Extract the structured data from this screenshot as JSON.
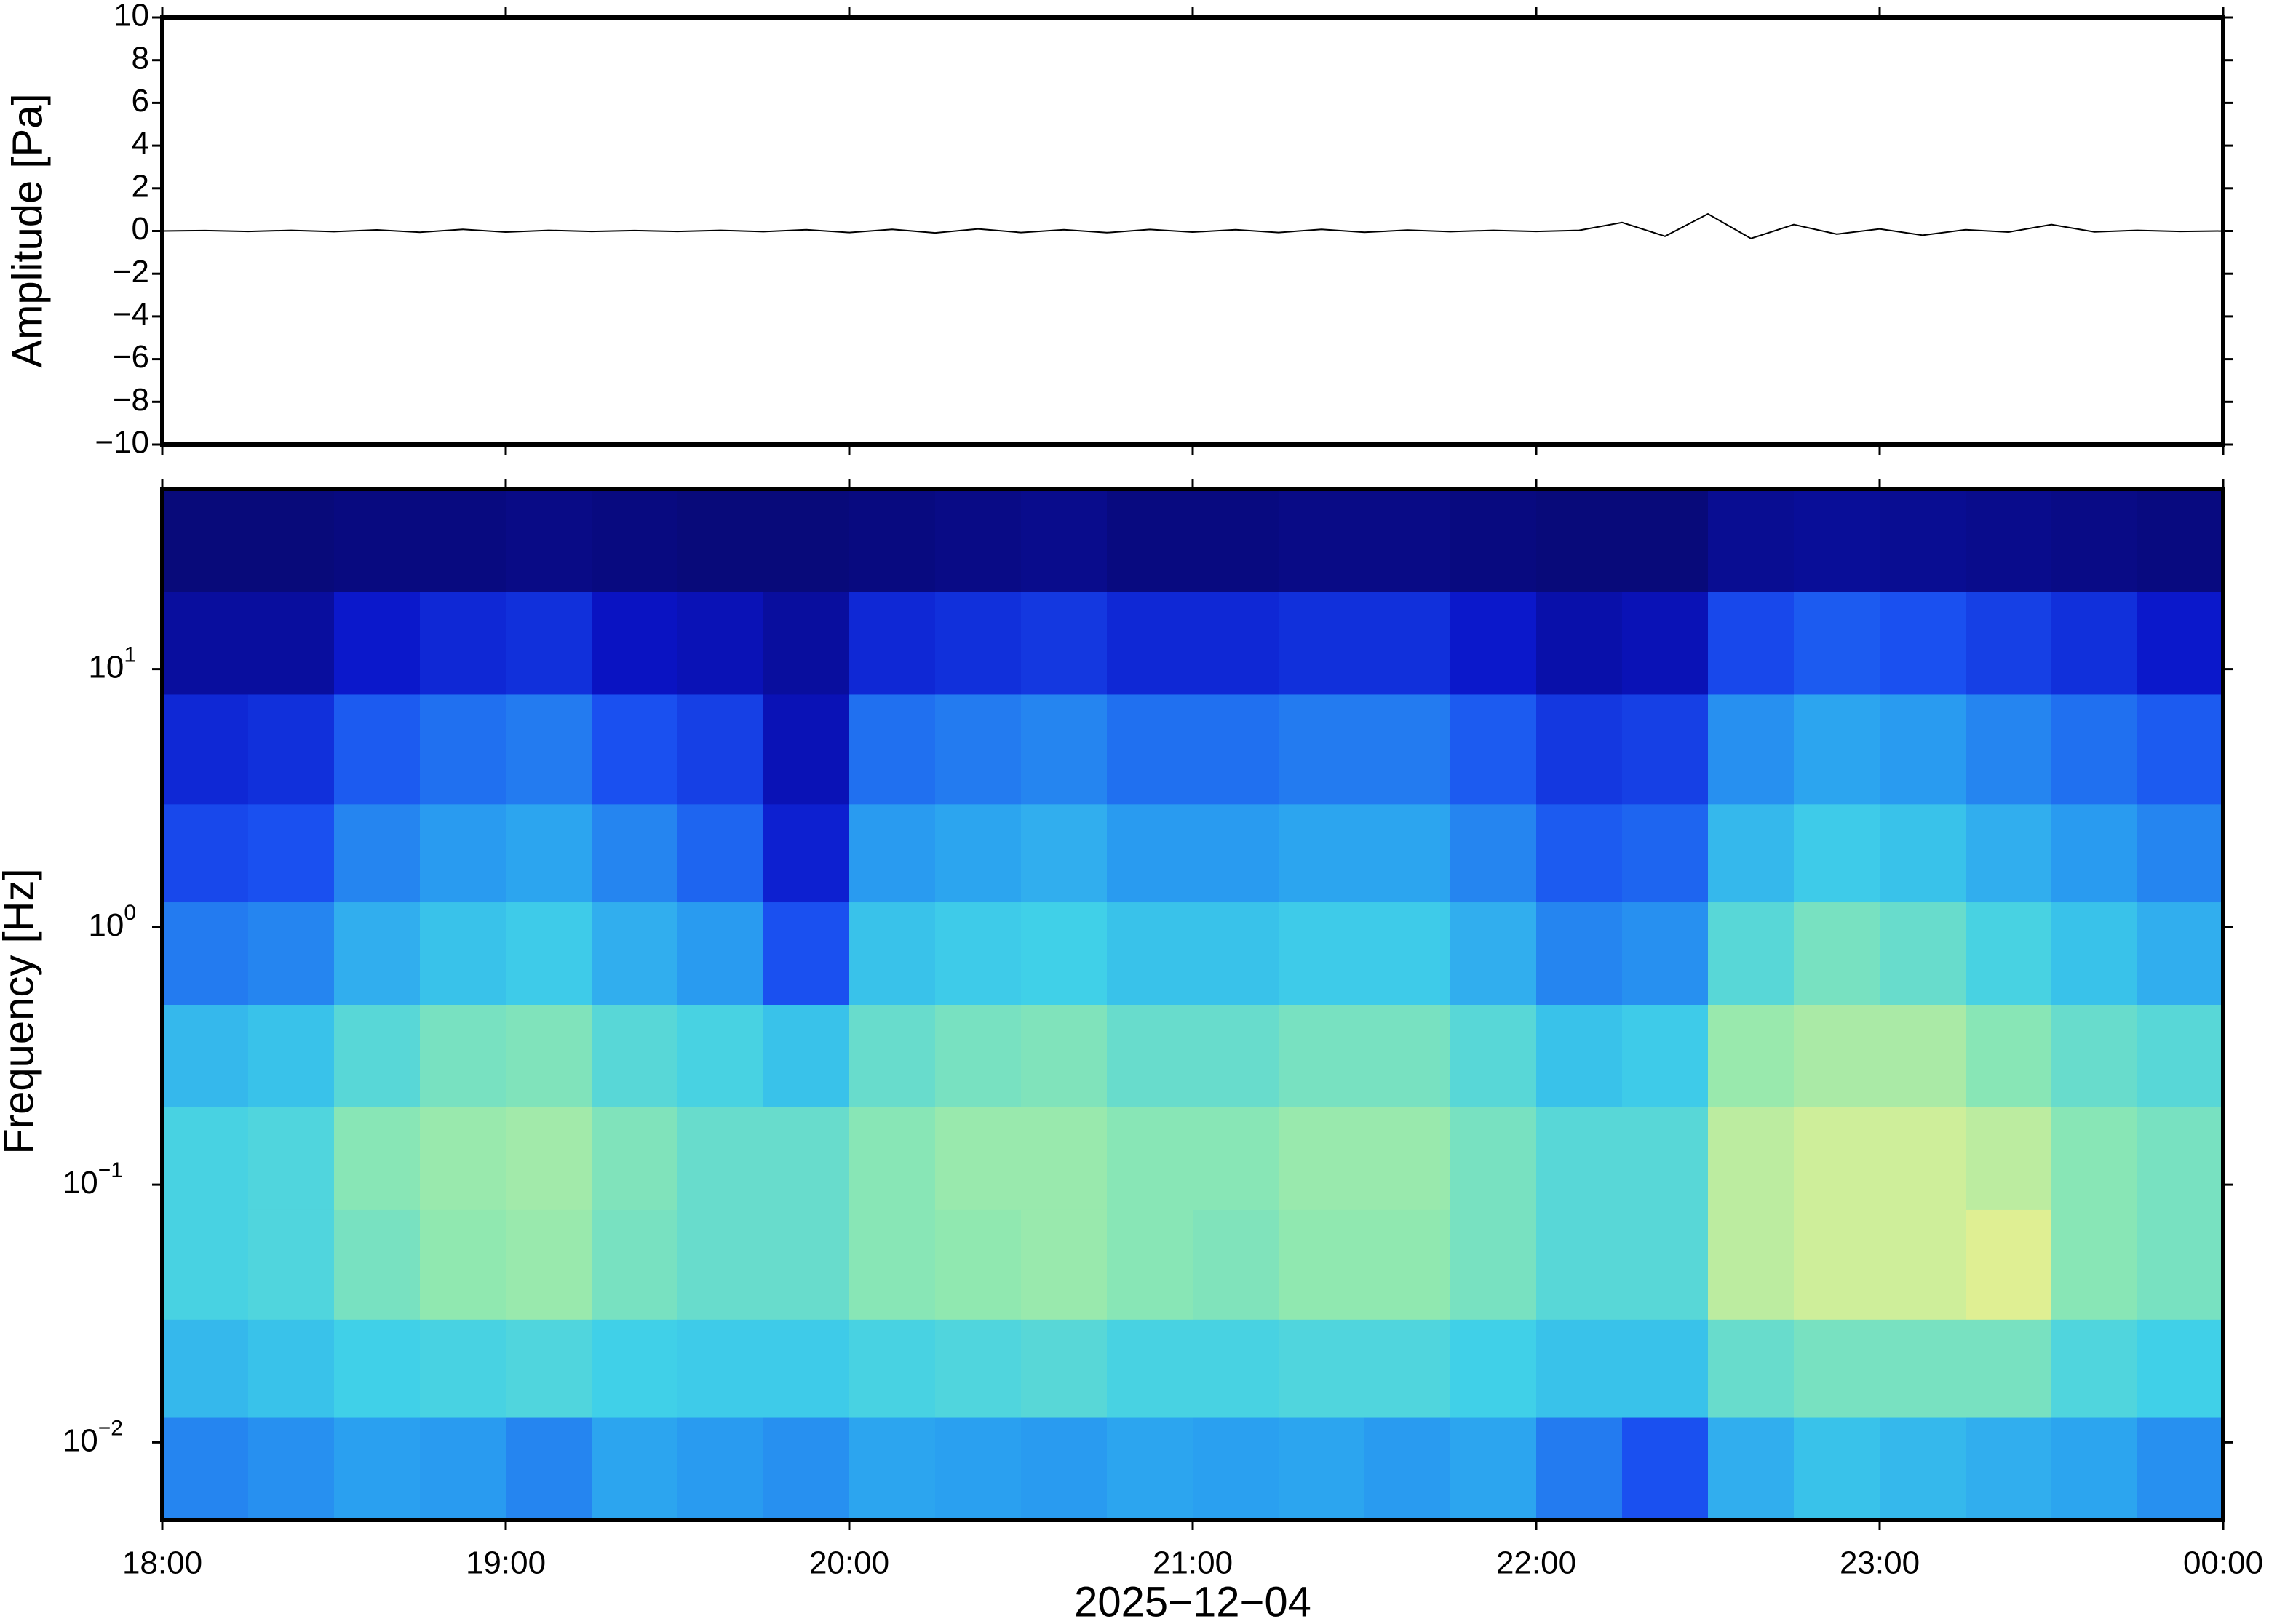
{
  "chart_data": [
    {
      "type": "line",
      "ylabel": "Amplitude [Pa]",
      "color": "#000000",
      "xlim": [
        18,
        24
      ],
      "ylim": [
        -10,
        10
      ],
      "yticks": [
        {
          "value": -10,
          "label": "−10"
        },
        {
          "value": -8,
          "label": "−8"
        },
        {
          "value": -6,
          "label": "−6"
        },
        {
          "value": -4,
          "label": "−4"
        },
        {
          "value": -2,
          "label": "−2"
        },
        0,
        2,
        4,
        6,
        8,
        10
      ],
      "x": [
        18,
        18.125,
        18.25,
        18.375,
        18.5,
        18.625,
        18.75,
        18.875,
        19,
        19.125,
        19.25,
        19.375,
        19.5,
        19.625,
        19.75,
        19.875,
        20,
        20.125,
        20.25,
        20.375,
        20.5,
        20.625,
        20.75,
        20.875,
        21,
        21.125,
        21.25,
        21.375,
        21.5,
        21.625,
        21.75,
        21.875,
        22,
        22.125,
        22.25,
        22.375,
        22.5,
        22.625,
        22.75,
        22.875,
        23,
        23.125,
        23.25,
        23.375,
        23.5,
        23.625,
        23.75,
        23.875,
        24
      ],
      "values": [
        0,
        0.02,
        -0.02,
        0.03,
        -0.03,
        0.05,
        -0.06,
        0.08,
        -0.05,
        0.03,
        -0.02,
        0.02,
        -0.02,
        0.03,
        -0.03,
        0.06,
        -0.07,
        0.08,
        -0.09,
        0.1,
        -0.07,
        0.06,
        -0.08,
        0.07,
        -0.05,
        0.06,
        -0.07,
        0.08,
        -0.06,
        0.04,
        -0.03,
        0.03,
        -0.02,
        0.03,
        0.4,
        -0.25,
        0.8,
        -0.35,
        0.3,
        -0.15,
        0.1,
        -0.2,
        0.06,
        -0.05,
        0.3,
        -0.04,
        0.03,
        -0.02,
        0
      ]
    },
    {
      "type": "heatmap",
      "ylabel": "Frequency [Hz]",
      "xlabel": "2025−12−04",
      "log_y": true,
      "xlim": [
        18,
        24
      ],
      "ylim": [
        0.005,
        50
      ],
      "xticks": [
        {
          "value": 18,
          "label": "18:00"
        },
        {
          "value": 19,
          "label": "19:00"
        },
        {
          "value": 20,
          "label": "20:00"
        },
        {
          "value": 21,
          "label": "21:00"
        },
        {
          "value": 22,
          "label": "22:00"
        },
        {
          "value": 23,
          "label": "23:00"
        },
        {
          "value": 24,
          "label": "00:00"
        }
      ],
      "yticks": [
        {
          "value": 0.01,
          "label": "10",
          "exponent": "−2"
        },
        {
          "value": 0.1,
          "label": "10",
          "exponent": "−1"
        },
        {
          "value": 1,
          "label": "10",
          "exponent": "0"
        },
        {
          "value": 10,
          "label": "10",
          "exponent": "1"
        }
      ],
      "colormap": [
        [
          0,
          "#08086e"
        ],
        [
          0.15,
          "#0a14c8"
        ],
        [
          0.3,
          "#1a50f0"
        ],
        [
          0.45,
          "#2aa0f0"
        ],
        [
          0.55,
          "#40d0e8"
        ],
        [
          0.65,
          "#90e8b0"
        ],
        [
          0.75,
          "#e8f090"
        ],
        [
          0.85,
          "#f8c070"
        ],
        [
          1,
          "#f07040"
        ]
      ],
      "x_edges": [
        18,
        18.25,
        18.5,
        18.75,
        19,
        19.25,
        19.5,
        19.75,
        20,
        20.25,
        20.5,
        20.75,
        21,
        21.25,
        21.5,
        21.75,
        22,
        22.25,
        22.5,
        22.75,
        23,
        23.25,
        23.5,
        23.75,
        24
      ],
      "y_edges": [
        0.005,
        0.0125,
        0.03,
        0.08,
        0.2,
        0.5,
        1.25,
        3,
        8,
        20,
        50
      ],
      "z": [
        [
          0.4,
          0.5,
          0.56,
          0.56,
          0.5,
          0.38,
          0.28,
          0.2,
          0.08,
          0.02
        ],
        [
          0.42,
          0.52,
          0.57,
          0.57,
          0.52,
          0.4,
          0.3,
          0.22,
          0.08,
          0.02
        ],
        [
          0.45,
          0.55,
          0.62,
          0.64,
          0.58,
          0.48,
          0.4,
          0.32,
          0.16,
          0.03
        ],
        [
          0.44,
          0.56,
          0.65,
          0.66,
          0.62,
          0.52,
          0.44,
          0.36,
          0.2,
          0.03
        ],
        [
          0.4,
          0.57,
          0.66,
          0.67,
          0.63,
          0.54,
          0.46,
          0.38,
          0.22,
          0.04
        ],
        [
          0.46,
          0.55,
          0.62,
          0.63,
          0.58,
          0.48,
          0.4,
          0.3,
          0.14,
          0.03
        ],
        [
          0.44,
          0.54,
          0.6,
          0.6,
          0.56,
          0.44,
          0.34,
          0.26,
          0.12,
          0.02
        ],
        [
          0.42,
          0.54,
          0.6,
          0.6,
          0.52,
          0.3,
          0.18,
          0.12,
          0.08,
          0.02
        ],
        [
          0.46,
          0.56,
          0.64,
          0.64,
          0.6,
          0.52,
          0.44,
          0.36,
          0.2,
          0.03
        ],
        [
          0.45,
          0.57,
          0.65,
          0.66,
          0.62,
          0.54,
          0.46,
          0.38,
          0.22,
          0.04
        ],
        [
          0.44,
          0.58,
          0.66,
          0.66,
          0.63,
          0.55,
          0.48,
          0.4,
          0.24,
          0.05
        ],
        [
          0.46,
          0.56,
          0.64,
          0.64,
          0.6,
          0.52,
          0.44,
          0.36,
          0.2,
          0.03
        ],
        [
          0.45,
          0.56,
          0.63,
          0.64,
          0.6,
          0.52,
          0.44,
          0.36,
          0.2,
          0.03
        ],
        [
          0.46,
          0.57,
          0.65,
          0.66,
          0.62,
          0.54,
          0.46,
          0.38,
          0.22,
          0.04
        ],
        [
          0.44,
          0.57,
          0.65,
          0.66,
          0.62,
          0.54,
          0.46,
          0.38,
          0.22,
          0.04
        ],
        [
          0.46,
          0.55,
          0.62,
          0.62,
          0.58,
          0.48,
          0.4,
          0.32,
          0.16,
          0.03
        ],
        [
          0.38,
          0.52,
          0.58,
          0.58,
          0.52,
          0.4,
          0.32,
          0.24,
          0.1,
          0.02
        ],
        [
          0.3,
          0.52,
          0.58,
          0.58,
          0.54,
          0.42,
          0.34,
          0.26,
          0.12,
          0.02
        ],
        [
          0.48,
          0.6,
          0.7,
          0.7,
          0.66,
          0.58,
          0.5,
          0.42,
          0.28,
          0.06
        ],
        [
          0.52,
          0.62,
          0.72,
          0.72,
          0.68,
          0.62,
          0.54,
          0.46,
          0.32,
          0.07
        ],
        [
          0.5,
          0.62,
          0.72,
          0.72,
          0.68,
          0.6,
          0.52,
          0.44,
          0.3,
          0.06
        ],
        [
          0.48,
          0.62,
          0.74,
          0.7,
          0.64,
          0.56,
          0.48,
          0.4,
          0.26,
          0.05
        ],
        [
          0.46,
          0.57,
          0.64,
          0.64,
          0.6,
          0.52,
          0.44,
          0.36,
          0.22,
          0.04
        ],
        [
          0.42,
          0.55,
          0.62,
          0.62,
          0.58,
          0.48,
          0.4,
          0.32,
          0.16,
          0.03
        ]
      ]
    }
  ]
}
